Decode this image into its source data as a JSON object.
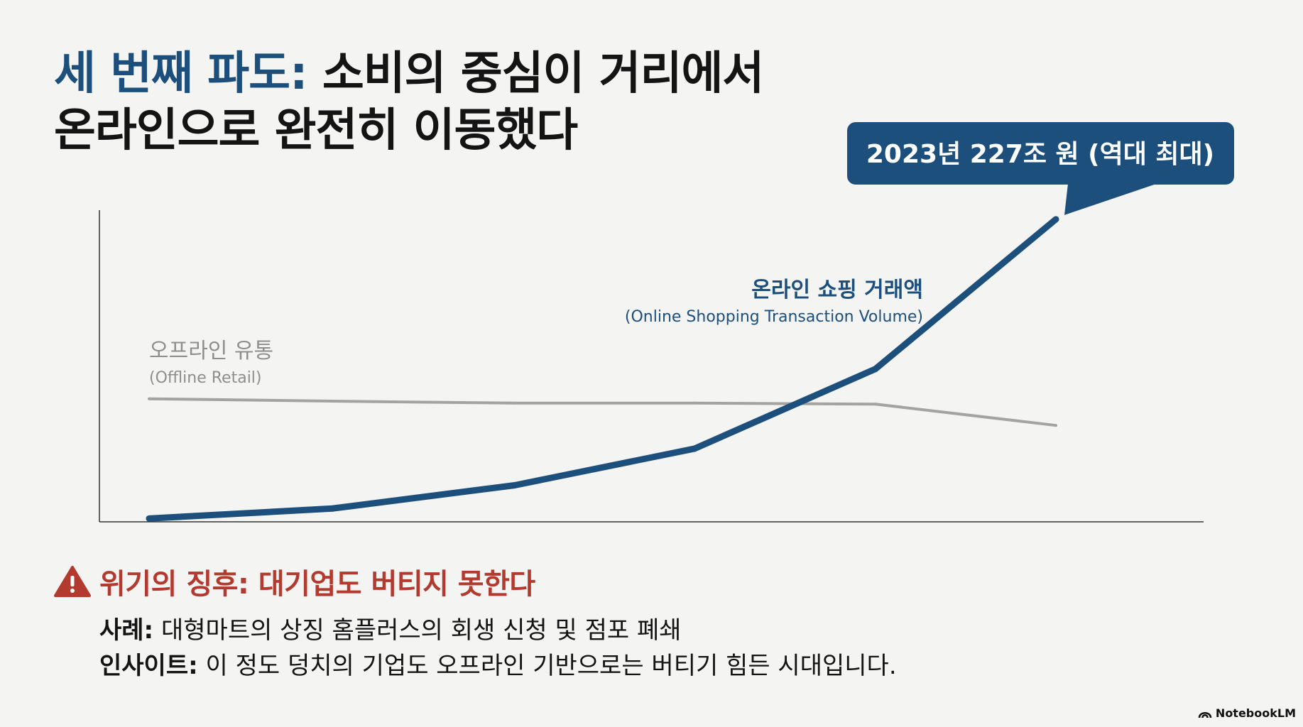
{
  "title": {
    "accent": "세 번째 파도:",
    "rest": " 소비의 중심이 거리에서",
    "line2": "온라인으로 완전히 이동했다"
  },
  "chart_data": {
    "type": "line",
    "x": [
      0,
      1,
      2,
      3,
      4,
      5
    ],
    "series": [
      {
        "name": "온라인 쇼핑 거래액",
        "subname": "(Online Shopping Transaction Volume)",
        "values": [
          0,
          3,
          10,
          21,
          45,
          90
        ],
        "color": "#1d4f7c"
      },
      {
        "name": "오프라인 유통",
        "subname": "(Offline Retail)",
        "values": [
          36,
          35.3,
          34.7,
          34.7,
          34.4,
          28
        ],
        "color": "#a3a3a3"
      }
    ],
    "ylim": [
      -1,
      100
    ],
    "grid": false,
    "callout": "2023년 227조 원 (역대 최대)"
  },
  "warning": {
    "icon": "warning-triangle-icon",
    "title": "위기의 징후: 대기업도 버티지 못한다",
    "case_label": "사례:",
    "case_text": " 대형마트의 상징 홈플러스의 회생 신청 및 점포 폐쇄",
    "insight_label": "인사이트:",
    "insight_text": " 이 정도 덩치의 기업도 오프라인 기반으로는 버티기 힘든 시대입니다."
  },
  "footer": {
    "brand": "NotebookLM",
    "icon": "notebooklm-logo-icon"
  },
  "colors": {
    "accent": "#1d4f7c",
    "offline": "#a3a3a3",
    "warning": "#b23a2e",
    "background": "#f4f4f3"
  }
}
